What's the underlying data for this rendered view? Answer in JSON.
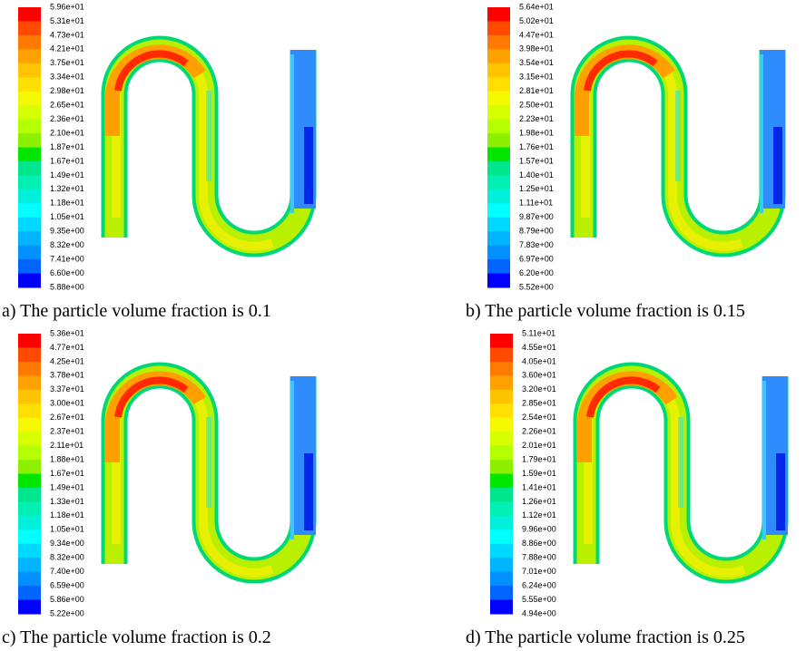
{
  "panels": [
    {
      "caption": "a) The particle volume fraction is 0.1",
      "levels": [
        "5.96e+01",
        "5.31e+01",
        "4.73e+01",
        "4.21e+01",
        "3.75e+01",
        "3.34e+01",
        "2.98e+01",
        "2.65e+01",
        "2.36e+01",
        "2.10e+01",
        "1.87e+01",
        "1.67e+01",
        "1.49e+01",
        "1.32e+01",
        "1.18e+01",
        "1.05e+01",
        "9.35e+00",
        "8.32e+00",
        "7.41e+00",
        "6.60e+00",
        "5.88e+00"
      ]
    },
    {
      "caption": "b) The particle volume fraction is 0.15",
      "levels": [
        "5.64e+01",
        "5.02e+01",
        "4.47e+01",
        "3.98e+01",
        "3.54e+01",
        "3.15e+01",
        "2.81e+01",
        "2.50e+01",
        "2.23e+01",
        "1.98e+01",
        "1.76e+01",
        "1.57e+01",
        "1.40e+01",
        "1.25e+01",
        "1.11e+01",
        "9.87e+00",
        "8.79e+00",
        "7.83e+00",
        "6.97e+00",
        "6.20e+00",
        "5.52e+00"
      ]
    },
    {
      "caption": "c) The particle volume fraction is 0.2",
      "levels": [
        "5.36e+01",
        "4.77e+01",
        "4.25e+01",
        "3.78e+01",
        "3.37e+01",
        "3.00e+01",
        "2.67e+01",
        "2.37e+01",
        "2.11e+01",
        "1.88e+01",
        "1.67e+01",
        "1.49e+01",
        "1.33e+01",
        "1.18e+01",
        "1.05e+01",
        "9.34e+00",
        "8.32e+00",
        "7.40e+00",
        "6.59e+00",
        "5.86e+00",
        "5.22e+00"
      ]
    },
    {
      "caption": "d) The particle volume fraction is 0.25",
      "levels": [
        "5.11e+01",
        "4.55e+01",
        "4.05e+01",
        "3.60e+01",
        "3.20e+01",
        "2.85e+01",
        "2.54e+01",
        "2.26e+01",
        "2.01e+01",
        "1.79e+01",
        "1.59e+01",
        "1.41e+01",
        "1.26e+01",
        "1.12e+01",
        "9.96e+00",
        "8.86e+00",
        "7.88e+00",
        "7.01e+00",
        "6.24e+00",
        "5.55e+00",
        "4.94e+00"
      ]
    }
  ]
}
